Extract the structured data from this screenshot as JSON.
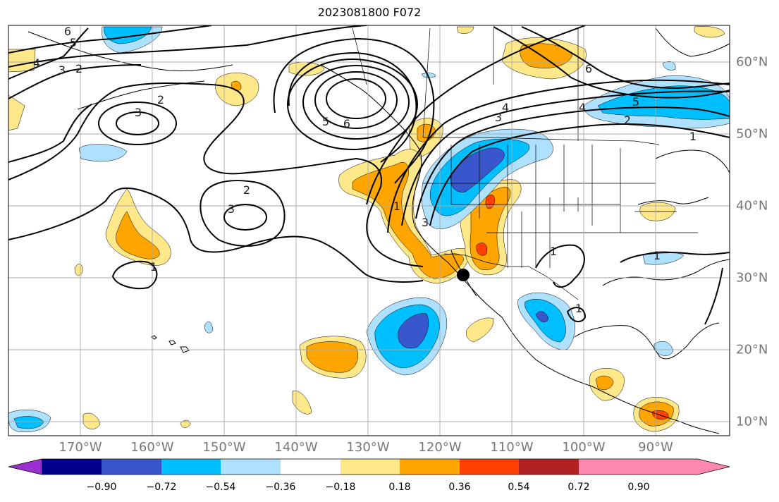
{
  "title": "2023081800 F072",
  "lon_labels": [
    "170°W",
    "160°W",
    "150°W",
    "140°W",
    "130°W",
    "120°W",
    "110°W",
    "100°W",
    "90°W"
  ],
  "lat_labels": [
    "60°N",
    "50°N",
    "40°N",
    "30°N",
    "20°N",
    "10°N"
  ],
  "colorbar": {
    "ticks": [
      "−0.90",
      "−0.72",
      "−0.54",
      "−0.36",
      "−0.18",
      "0.18",
      "0.36",
      "0.54",
      "0.72",
      "0.90"
    ],
    "colors": [
      "#9b30d0",
      "#00008b",
      "#3a56cc",
      "#00bfff",
      "#aee1ff",
      "#ffffff",
      "#ffe88a",
      "#ffa500",
      "#ff4000",
      "#b22222",
      "#ff88b0"
    ]
  },
  "contour_labels": [
    "6",
    "5",
    "4",
    "3",
    "2",
    "3",
    "2",
    "2",
    "3",
    "1",
    "1",
    "3",
    "5",
    "6",
    "4",
    "3",
    "4",
    "6",
    "5",
    "2",
    "1",
    "1",
    "1",
    "1"
  ],
  "marker": "station-dot"
}
